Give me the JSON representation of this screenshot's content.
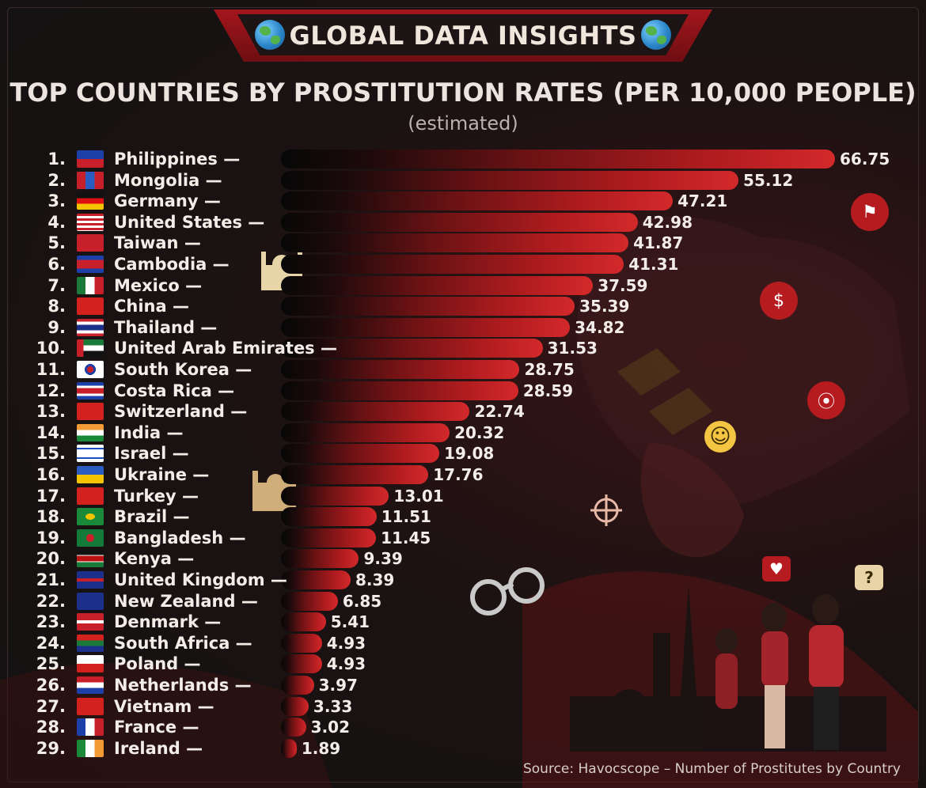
{
  "header": {
    "title": "GLOBAL DATA INSIGHTS",
    "icon": "globe-icon"
  },
  "chart_data": {
    "type": "bar",
    "orientation": "horizontal",
    "title": "TOP COUNTRIES BY PROSTITUTION RATES (PER 10,000 PEOPLE)",
    "subtitle": "(estimated)",
    "grid": false,
    "legend": "none",
    "xlim": [
      0,
      66.75
    ],
    "ranks": [
      "1.",
      "2.",
      "3.",
      "4.",
      "5.",
      "6.",
      "7.",
      "8.",
      "9.",
      "10.",
      "11.",
      "12.",
      "13.",
      "14.",
      "15.",
      "16.",
      "17.",
      "18.",
      "19.",
      "20.",
      "21.",
      "22.",
      "23.",
      "24.",
      "25.",
      "26.",
      "27.",
      "28.",
      "29."
    ],
    "categories": [
      "Philippines",
      "Mongolia",
      "Germany",
      "United States",
      "Taiwan",
      "Cambodia",
      "Mexico",
      "China",
      "Thailand",
      "United Arab Emirates",
      "South Korea",
      "Costa Rica",
      "Switzerland",
      "India",
      "Israel",
      "Ukraine",
      "Turkey",
      "Brazil",
      "Bangladesh",
      "Kenya",
      "United Kingdom",
      "New Zealand",
      "Denmark",
      "South Africa",
      "Poland",
      "Netherlands",
      "Vietnam",
      "France",
      "Ireland"
    ],
    "label_suffix": " —",
    "values": [
      66.75,
      55.12,
      47.21,
      42.98,
      41.87,
      41.31,
      37.59,
      35.39,
      34.82,
      31.53,
      28.75,
      28.59,
      22.74,
      20.32,
      19.08,
      17.76,
      13.01,
      11.51,
      11.45,
      9.39,
      8.39,
      6.85,
      5.41,
      4.93,
      4.93,
      3.97,
      3.33,
      3.02,
      1.89
    ],
    "value_labels": [
      "66.75",
      "55.12",
      "47.21",
      "42.98",
      "41.87",
      "41.31",
      "37.59",
      "35.39",
      "34.82",
      "31.53",
      "28.75",
      "28.59",
      "22.74",
      "20.32",
      "19.08",
      "17.76",
      "13.01",
      "11.51",
      "11.45",
      "9.39",
      "8.39",
      "6.85",
      "5.41",
      "4.93",
      "4.93",
      "3.97",
      "3.33",
      "3.02",
      "1.89"
    ],
    "bar_color": "#c8232a"
  },
  "source": "Source: Havocscope – Number of Prostitutes by Country",
  "colors": {
    "accent": "#b51b1f",
    "background": "#141414",
    "text": "#f3ede8"
  }
}
